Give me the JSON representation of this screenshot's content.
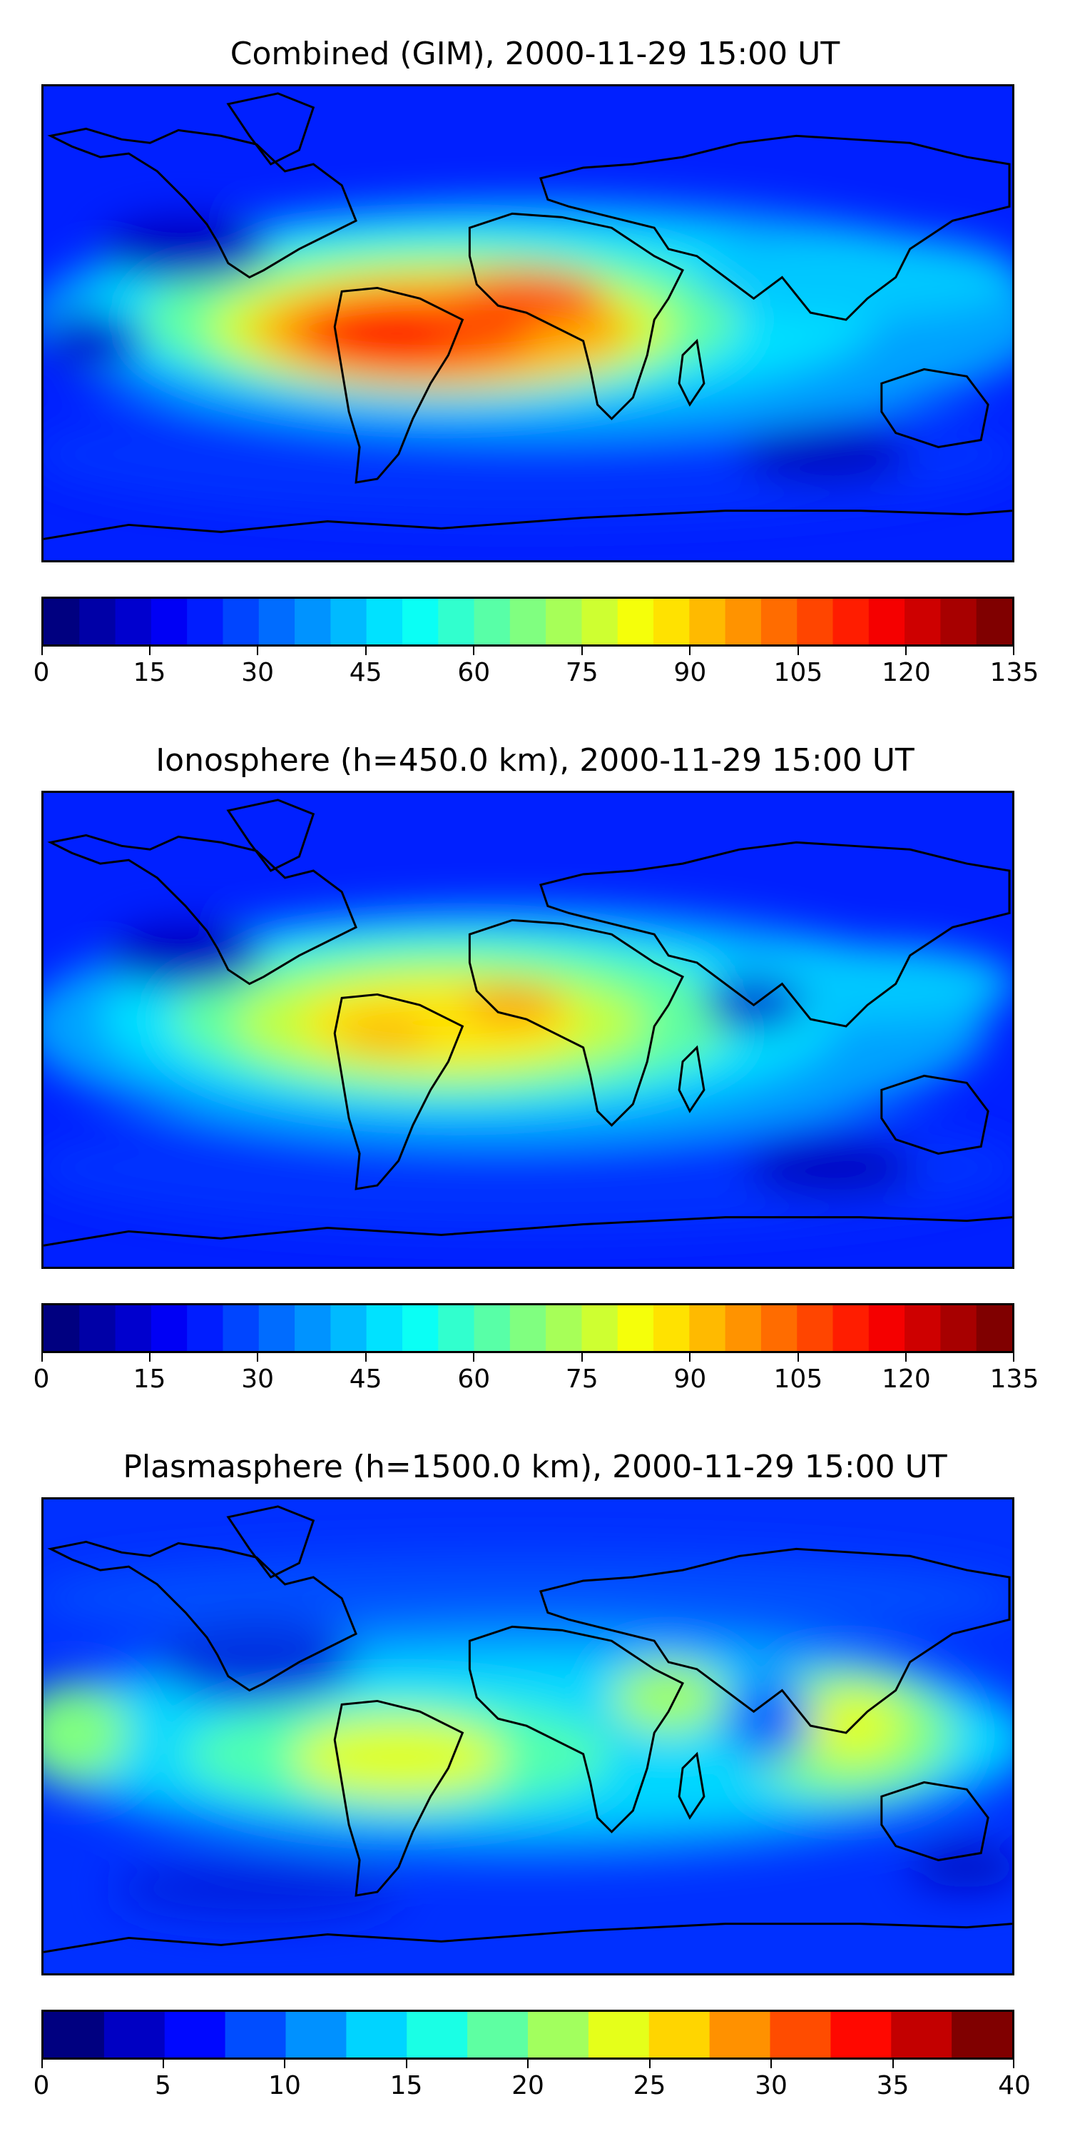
{
  "panels": [
    {
      "title": "Combined (GIM), 2000-11-29 15:00 UT",
      "colorbar": {
        "min": 0,
        "max": 135,
        "levels": 27,
        "ticks": [
          "0",
          "15",
          "30",
          "45",
          "60",
          "75",
          "90",
          "105",
          "120",
          "135"
        ]
      },
      "peak_level": "high"
    },
    {
      "title": "Ionosphere  (h=450.0 km), 2000-11-29 15:00 UT",
      "colorbar": {
        "min": 0,
        "max": 135,
        "levels": 27,
        "ticks": [
          "0",
          "15",
          "30",
          "45",
          "60",
          "75",
          "90",
          "105",
          "120",
          "135"
        ]
      },
      "peak_level": "medium"
    },
    {
      "title": "Plasmasphere (h=1500.0 km), 2000-11-29 15:00 UT",
      "colorbar": {
        "min": 0,
        "max": 40,
        "levels": 16,
        "ticks": [
          "0",
          "5",
          "10",
          "15",
          "20",
          "25",
          "30",
          "35",
          "40"
        ]
      },
      "peak_level": "low"
    }
  ],
  "colormap": "jet",
  "colors": {
    "deep_blue": "#00007f",
    "blue": "#0000ff",
    "azure": "#0080ff",
    "cyan": "#00e5ff",
    "aqua_green": "#40ffb0",
    "green": "#7fff7f",
    "yellow": "#ffff00",
    "orange": "#ff9a00",
    "red": "#ff2000",
    "dark_red": "#7f0000",
    "coastline": "#000000"
  }
}
